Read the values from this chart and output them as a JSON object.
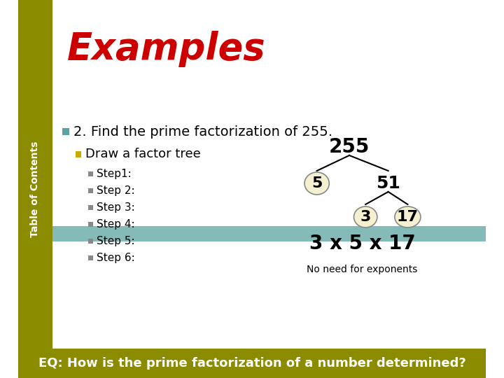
{
  "title": "Examples",
  "title_color": "#cc0000",
  "sidebar_color": "#8B8B00",
  "sidebar_text": "Table of Contents",
  "teal_bar_color": "#5BA3A0",
  "bullet1_text": "2. Find the prime factorization of 255.",
  "bullet2_text": "Draw a factor tree",
  "steps": [
    "Step1:",
    "Step 2:",
    "Step 3:",
    "Step 4:",
    "Step 5:",
    "Step 6:"
  ],
  "tree_top": "255",
  "tree_left": "5",
  "tree_right": "51",
  "tree_rl": "3",
  "tree_rr": "17",
  "result_text": "3 x 5 x 17",
  "note_text": "No need for exponents",
  "eq_text": "EQ: How is the prime factorization of a number determined?",
  "eq_bg": "#8B8B00",
  "eq_text_color": "#ffffff",
  "bg_color": "#ffffff",
  "node_fill": "#f5f0d0",
  "node_edge": "#888888"
}
